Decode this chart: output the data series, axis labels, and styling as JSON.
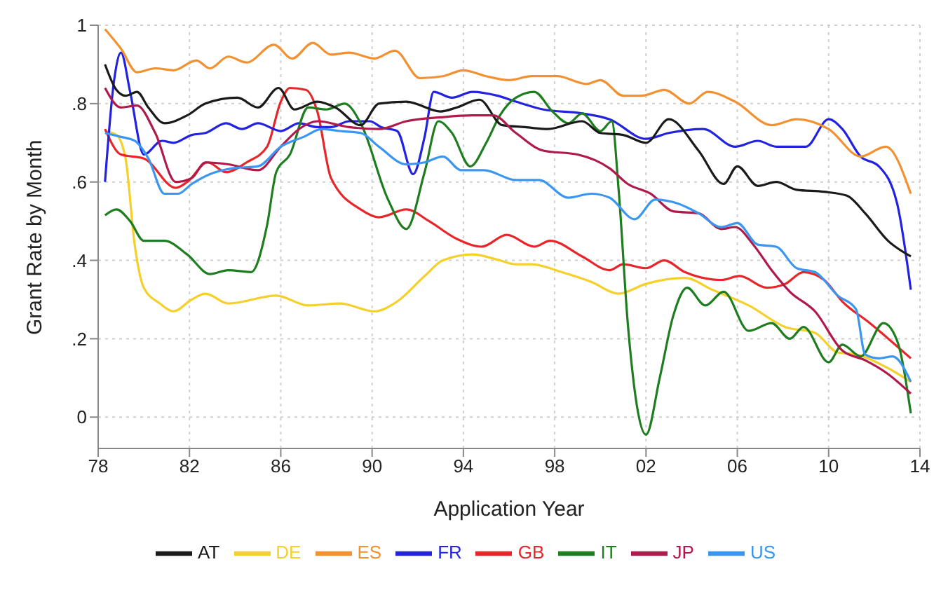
{
  "chart_data": {
    "type": "line",
    "xlabel": "Application Year",
    "ylabel": "Grant Rate by Month",
    "xlim": [
      1978,
      2014
    ],
    "xticks": [
      {
        "value": 1978,
        "label": "78"
      },
      {
        "value": 1982,
        "label": "82"
      },
      {
        "value": 1986,
        "label": "86"
      },
      {
        "value": 1990,
        "label": "90"
      },
      {
        "value": 1994,
        "label": "94"
      },
      {
        "value": 1998,
        "label": "98"
      },
      {
        "value": 2002,
        "label": "02"
      },
      {
        "value": 2006,
        "label": "06"
      },
      {
        "value": 2010,
        "label": "10"
      },
      {
        "value": 2014,
        "label": "14"
      }
    ],
    "ylim": [
      -0.08,
      1
    ],
    "yticks": [
      {
        "value": 0,
        "label": "0"
      },
      {
        "value": 0.2,
        "label": ".2"
      },
      {
        "value": 0.4,
        "label": ".4"
      },
      {
        "value": 0.6,
        "label": ".6"
      },
      {
        "value": 0.8,
        "label": ".8"
      },
      {
        "value": 1,
        "label": "1"
      }
    ],
    "grid": true,
    "legend": "bottom",
    "series": [
      {
        "name": "DE",
        "color": "#f5cf2a",
        "x": [
          1978.3,
          1978.8,
          1979.2,
          1979.6,
          1980,
          1980.7,
          1981.3,
          1982.1,
          1982.7,
          1983.7,
          1985.8,
          1987.2,
          1988.6,
          1990.1,
          1991.1,
          1992.3,
          1993.1,
          1994.4,
          1995.6,
          1996.3,
          1997,
          1998.3,
          1999.6,
          2000.8,
          2002,
          2003.7,
          2004.9,
          2006.5,
          2008.1,
          2009.4,
          2010.4,
          2011.2,
          2012.6,
          2013.6
        ],
        "values": [
          0.73,
          0.72,
          0.66,
          0.44,
          0.33,
          0.29,
          0.27,
          0.3,
          0.315,
          0.29,
          0.31,
          0.285,
          0.29,
          0.27,
          0.295,
          0.36,
          0.4,
          0.415,
          0.4,
          0.39,
          0.39,
          0.37,
          0.345,
          0.315,
          0.34,
          0.355,
          0.325,
          0.285,
          0.23,
          0.215,
          0.165,
          0.16,
          0.125,
          0.09
        ]
      },
      {
        "name": "GB",
        "color": "#e8262a",
        "x": [
          1978.3,
          1979,
          1980,
          1981.4,
          1981.9,
          1982.8,
          1983.6,
          1984.5,
          1985.4,
          1986,
          1986.4,
          1987.1,
          1987.6,
          1988.2,
          1989.5,
          1990.3,
          1991.5,
          1992.5,
          1993.7,
          1994.8,
          1995.9,
          1997.1,
          1997.8,
          1999.2,
          2000.4,
          2001,
          2002,
          2002.8,
          2003.7,
          2005.3,
          2006.1,
          2007.3,
          2008.1,
          2008.9,
          2009.8,
          2010.6,
          2011.8,
          2013.6
        ],
        "values": [
          0.735,
          0.67,
          0.66,
          0.585,
          0.6,
          0.65,
          0.625,
          0.65,
          0.69,
          0.805,
          0.84,
          0.835,
          0.78,
          0.61,
          0.53,
          0.51,
          0.53,
          0.5,
          0.455,
          0.435,
          0.465,
          0.435,
          0.45,
          0.41,
          0.375,
          0.39,
          0.38,
          0.4,
          0.37,
          0.35,
          0.36,
          0.33,
          0.34,
          0.37,
          0.35,
          0.295,
          0.24,
          0.15
        ]
      },
      {
        "name": "FR",
        "color": "#2222e0",
        "x": [
          1978.3,
          1978.7,
          1979,
          1979.4,
          1980,
          1980.8,
          1981.3,
          1982.1,
          1982.7,
          1983.6,
          1984.3,
          1985,
          1986,
          1986.8,
          1987.6,
          1988.2,
          1989,
          1989.9,
          1990.4,
          1991.1,
          1991.8,
          1992.3,
          1992.7,
          1993.5,
          1994.4,
          1995.5,
          1996.3,
          1997.5,
          1999.2,
          2000.4,
          2002,
          2003,
          2004.5,
          2005.9,
          2006.9,
          2007.7,
          2009,
          2010,
          2010.6,
          2011.4,
          2012.2,
          2013,
          2013.6
        ],
        "values": [
          0.6,
          0.86,
          0.93,
          0.83,
          0.67,
          0.705,
          0.7,
          0.72,
          0.725,
          0.75,
          0.735,
          0.75,
          0.73,
          0.75,
          0.74,
          0.74,
          0.755,
          0.755,
          0.74,
          0.73,
          0.62,
          0.715,
          0.83,
          0.815,
          0.83,
          0.82,
          0.805,
          0.785,
          0.775,
          0.76,
          0.71,
          0.725,
          0.735,
          0.69,
          0.705,
          0.69,
          0.69,
          0.76,
          0.735,
          0.665,
          0.64,
          0.545,
          0.325
        ]
      },
      {
        "name": "IT",
        "color": "#1e7d1e",
        "x": [
          1978.3,
          1978.8,
          1979.4,
          1980,
          1980.9,
          1981.9,
          1982.9,
          1983.7,
          1984.7,
          1985.4,
          1985.8,
          1986.4,
          1987.2,
          1988,
          1988.8,
          1989.5,
          1990.7,
          1991.5,
          1992.3,
          1992.9,
          1993.5,
          1994.3,
          1995,
          1995.6,
          1996.3,
          1997.1,
          1997.9,
          1998.6,
          1999.2,
          2000,
          2000.5,
          2000.8,
          2001.2,
          2002,
          2002.6,
          2003.2,
          2003.8,
          2004.6,
          2005.4,
          2006.5,
          2007.5,
          2008.3,
          2008.9,
          2010,
          2010.6,
          2011.4,
          2012.4,
          2013,
          2013.6
        ],
        "values": [
          0.515,
          0.53,
          0.5,
          0.45,
          0.45,
          0.415,
          0.365,
          0.375,
          0.37,
          0.49,
          0.625,
          0.67,
          0.79,
          0.785,
          0.8,
          0.75,
          0.555,
          0.48,
          0.625,
          0.755,
          0.725,
          0.64,
          0.7,
          0.77,
          0.815,
          0.83,
          0.78,
          0.75,
          0.775,
          0.73,
          0.755,
          0.58,
          0.24,
          -0.045,
          0.1,
          0.26,
          0.33,
          0.285,
          0.32,
          0.22,
          0.24,
          0.2,
          0.23,
          0.14,
          0.185,
          0.155,
          0.24,
          0.195,
          0.01
        ]
      },
      {
        "name": "ES",
        "color": "#f39030",
        "x": [
          1978.3,
          1979,
          1979.7,
          1980.5,
          1981.3,
          1982.3,
          1982.9,
          1983.7,
          1984.5,
          1985.7,
          1986.5,
          1987.4,
          1988.2,
          1989,
          1990.1,
          1991,
          1992.1,
          1993.1,
          1994,
          1995,
          1996,
          1997,
          1998.1,
          1999.4,
          2000,
          2001,
          2001.8,
          2002.8,
          2003.9,
          2004.7,
          2005.9,
          2007.5,
          2008.6,
          2010,
          2011.4,
          2012.5,
          2013.6
        ],
        "values": [
          0.99,
          0.94,
          0.88,
          0.89,
          0.885,
          0.91,
          0.89,
          0.92,
          0.905,
          0.95,
          0.915,
          0.955,
          0.925,
          0.93,
          0.915,
          0.935,
          0.865,
          0.87,
          0.885,
          0.87,
          0.86,
          0.87,
          0.87,
          0.85,
          0.86,
          0.82,
          0.82,
          0.835,
          0.8,
          0.83,
          0.805,
          0.745,
          0.76,
          0.735,
          0.665,
          0.69,
          0.57
        ]
      },
      {
        "name": "AT",
        "color": "#1a1a1a",
        "x": [
          1978.3,
          1978.8,
          1979.2,
          1979.7,
          1980.2,
          1980.9,
          1981.9,
          1982.7,
          1984.1,
          1985,
          1985.9,
          1986.6,
          1987.6,
          1988.4,
          1989.5,
          1990.3,
          1991.5,
          1993,
          1993.7,
          1994.7,
          1995.7,
          1996.7,
          1997.7,
          1999.2,
          2000,
          2001,
          2002,
          2003,
          2004.3,
          2005.4,
          2006,
          2006.9,
          2007.7,
          2008.6,
          2009.8,
          2010.8,
          2011.6,
          2012.6,
          2013.6
        ],
        "values": [
          0.9,
          0.835,
          0.82,
          0.83,
          0.79,
          0.75,
          0.77,
          0.8,
          0.815,
          0.79,
          0.84,
          0.785,
          0.805,
          0.79,
          0.745,
          0.8,
          0.805,
          0.78,
          0.79,
          0.81,
          0.745,
          0.74,
          0.735,
          0.755,
          0.725,
          0.72,
          0.7,
          0.76,
          0.68,
          0.595,
          0.64,
          0.59,
          0.6,
          0.58,
          0.575,
          0.565,
          0.52,
          0.45,
          0.41
        ]
      },
      {
        "name": "JP",
        "color": "#b01a4a",
        "x": [
          1978.3,
          1979,
          1979.7,
          1980.5,
          1981.4,
          1982.1,
          1982.7,
          1983.7,
          1985,
          1986,
          1986.8,
          1987.6,
          1989,
          1990.3,
          1991.5,
          1993,
          1994.4,
          1995.3,
          1996.3,
          1997.5,
          1999,
          2000.4,
          2001.2,
          2002.2,
          2003.2,
          2004.3,
          2005.3,
          2005.9,
          2006.7,
          2007.5,
          2008.3,
          2009.4,
          2010.6,
          2011.6,
          2012.6,
          2013.6
        ],
        "values": [
          0.84,
          0.79,
          0.795,
          0.725,
          0.6,
          0.61,
          0.65,
          0.645,
          0.63,
          0.69,
          0.735,
          0.755,
          0.74,
          0.735,
          0.755,
          0.765,
          0.77,
          0.77,
          0.725,
          0.68,
          0.67,
          0.635,
          0.595,
          0.57,
          0.525,
          0.52,
          0.48,
          0.485,
          0.44,
          0.375,
          0.32,
          0.27,
          0.17,
          0.145,
          0.11,
          0.06
        ]
      },
      {
        "name": "US",
        "color": "#3a96f0",
        "x": [
          1978.3,
          1979,
          1979.6,
          1980.2,
          1980.9,
          1981.5,
          1982.1,
          1982.9,
          1983.9,
          1985,
          1986,
          1987,
          1987.8,
          1988.6,
          1989.5,
          1990.3,
          1991.5,
          1992.3,
          1993.1,
          1993.9,
          1994.9,
          1996.3,
          1997.3,
          1998.6,
          1999.6,
          2000.4,
          2001.5,
          2002.4,
          2003.4,
          2004.3,
          2005.3,
          2006,
          2006.9,
          2007.7,
          2008.6,
          2009.4,
          2010.4,
          2011.2,
          2011.6,
          2012.2,
          2012.8,
          2013.6
        ],
        "values": [
          0.725,
          0.715,
          0.705,
          0.66,
          0.57,
          0.57,
          0.595,
          0.62,
          0.635,
          0.64,
          0.69,
          0.715,
          0.735,
          0.73,
          0.725,
          0.69,
          0.645,
          0.65,
          0.665,
          0.63,
          0.63,
          0.605,
          0.605,
          0.56,
          0.57,
          0.56,
          0.505,
          0.555,
          0.545,
          0.52,
          0.485,
          0.495,
          0.44,
          0.435,
          0.38,
          0.37,
          0.31,
          0.275,
          0.16,
          0.15,
          0.155,
          0.09
        ]
      }
    ]
  }
}
